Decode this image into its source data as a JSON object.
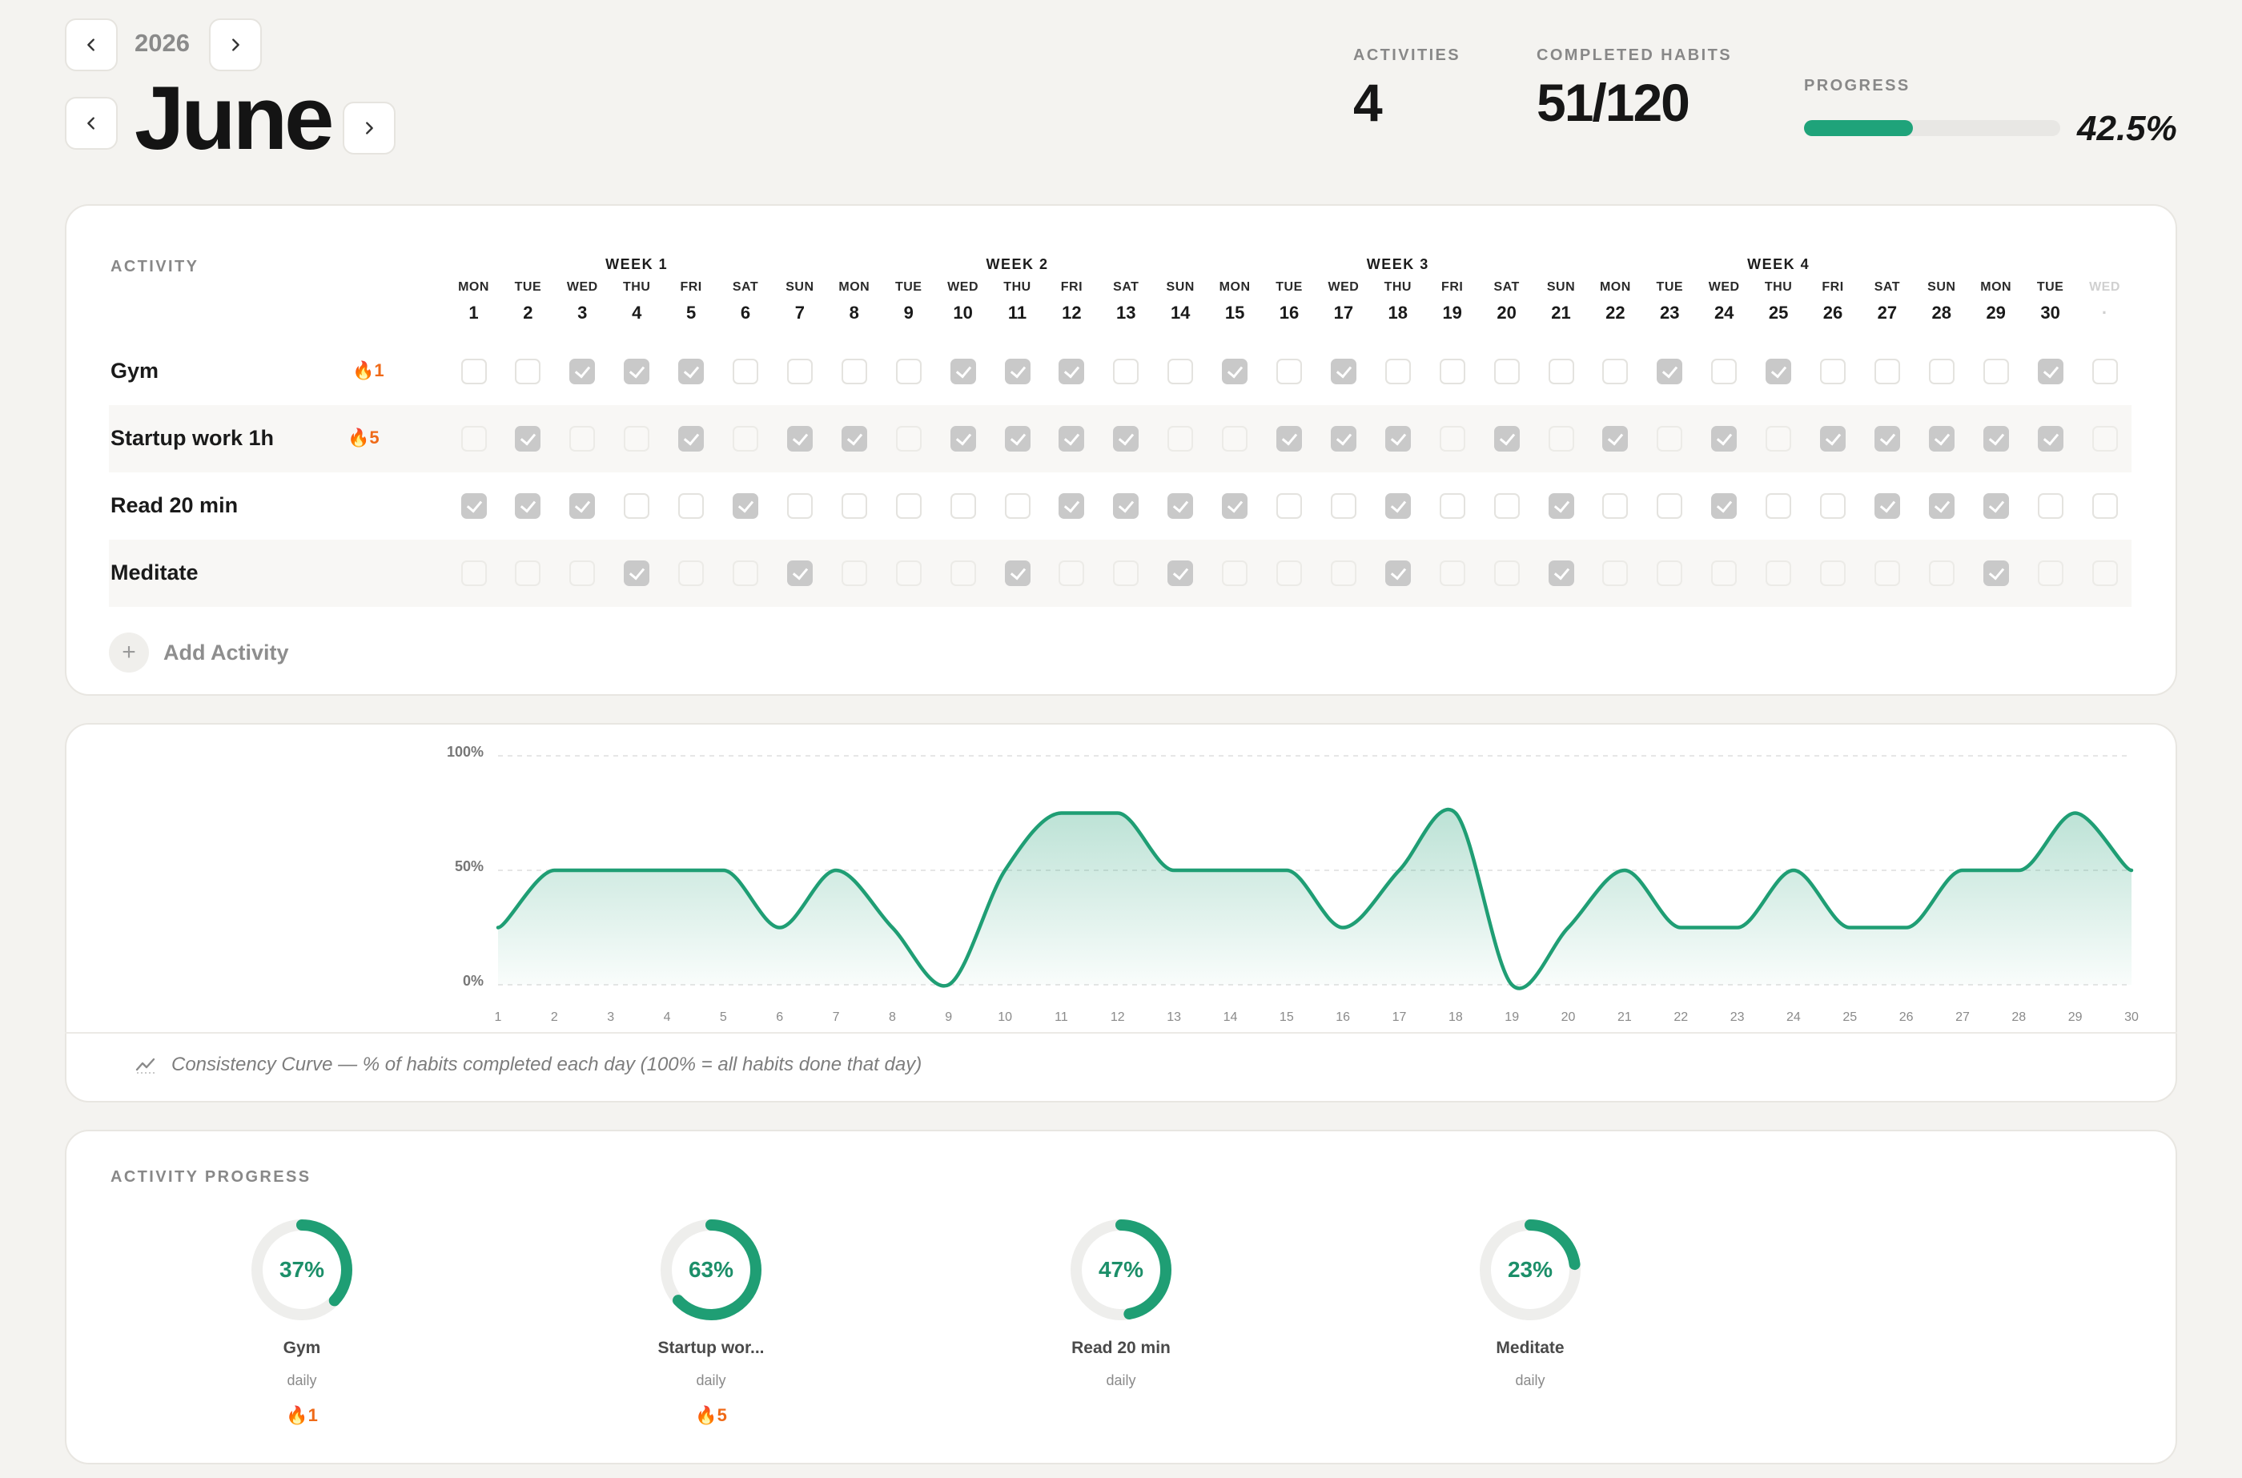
{
  "header": {
    "year": "2026",
    "month": "June",
    "stats": {
      "activities_label": "ACTIVITIES",
      "activities_value": "4",
      "completed_label": "COMPLETED HABITS",
      "completed_value": "51/120",
      "progress_label": "PROGRESS",
      "progress_value": "42.5%",
      "progress_fraction": 0.425
    }
  },
  "tracker": {
    "section_label": "ACTIVITY",
    "weeks": [
      "WEEK 1",
      "WEEK 2",
      "WEEK 3",
      "WEEK 4"
    ],
    "days": [
      {
        "name": "MON",
        "date": "1"
      },
      {
        "name": "TUE",
        "date": "2"
      },
      {
        "name": "WED",
        "date": "3"
      },
      {
        "name": "THU",
        "date": "4"
      },
      {
        "name": "FRI",
        "date": "5"
      },
      {
        "name": "SAT",
        "date": "6"
      },
      {
        "name": "SUN",
        "date": "7"
      },
      {
        "name": "MON",
        "date": "8"
      },
      {
        "name": "TUE",
        "date": "9"
      },
      {
        "name": "WED",
        "date": "10"
      },
      {
        "name": "THU",
        "date": "11"
      },
      {
        "name": "FRI",
        "date": "12"
      },
      {
        "name": "SAT",
        "date": "13"
      },
      {
        "name": "SUN",
        "date": "14"
      },
      {
        "name": "MON",
        "date": "15"
      },
      {
        "name": "TUE",
        "date": "16"
      },
      {
        "name": "WED",
        "date": "17"
      },
      {
        "name": "THU",
        "date": "18"
      },
      {
        "name": "FRI",
        "date": "19"
      },
      {
        "name": "SAT",
        "date": "20"
      },
      {
        "name": "SUN",
        "date": "21"
      },
      {
        "name": "MON",
        "date": "22"
      },
      {
        "name": "TUE",
        "date": "23"
      },
      {
        "name": "WED",
        "date": "24"
      },
      {
        "name": "THU",
        "date": "25"
      },
      {
        "name": "FRI",
        "date": "26"
      },
      {
        "name": "SAT",
        "date": "27"
      },
      {
        "name": "SUN",
        "date": "28"
      },
      {
        "name": "MON",
        "date": "29"
      },
      {
        "name": "TUE",
        "date": "30"
      },
      {
        "name": "WED",
        "date": "·",
        "faded": true
      }
    ],
    "habits": [
      {
        "name": "Gym",
        "streak": "🔥1",
        "checks": [
          0,
          0,
          1,
          1,
          1,
          0,
          0,
          0,
          0,
          1,
          1,
          1,
          0,
          0,
          1,
          0,
          1,
          0,
          0,
          0,
          0,
          0,
          1,
          0,
          1,
          0,
          0,
          0,
          0,
          1,
          0
        ]
      },
      {
        "name": "Startup work 1h",
        "streak": "🔥5",
        "checks": [
          0,
          1,
          0,
          0,
          1,
          0,
          1,
          1,
          0,
          1,
          1,
          1,
          1,
          0,
          0,
          1,
          1,
          1,
          0,
          1,
          0,
          1,
          0,
          1,
          0,
          1,
          1,
          1,
          1,
          1,
          0
        ]
      },
      {
        "name": "Read 20 min",
        "streak": "",
        "checks": [
          1,
          1,
          1,
          0,
          0,
          1,
          0,
          0,
          0,
          0,
          0,
          1,
          1,
          1,
          1,
          0,
          0,
          1,
          0,
          0,
          1,
          0,
          0,
          1,
          0,
          0,
          1,
          1,
          1,
          0,
          0
        ]
      },
      {
        "name": "Meditate",
        "streak": "",
        "checks": [
          0,
          0,
          0,
          1,
          0,
          0,
          1,
          0,
          0,
          0,
          1,
          0,
          0,
          1,
          0,
          0,
          0,
          1,
          0,
          0,
          1,
          0,
          0,
          0,
          0,
          0,
          0,
          0,
          1,
          0,
          0
        ]
      }
    ],
    "add_activity_label": "Add Activity"
  },
  "chart_data": {
    "type": "area",
    "title": "",
    "y_ticks": [
      "100%",
      "50%",
      "0%"
    ],
    "ylim": [
      0,
      100
    ],
    "x": [
      1,
      2,
      3,
      4,
      5,
      6,
      7,
      8,
      9,
      10,
      11,
      12,
      13,
      14,
      15,
      16,
      17,
      18,
      19,
      20,
      21,
      22,
      23,
      24,
      25,
      26,
      27,
      28,
      29,
      30
    ],
    "x_tick_labels": [
      "1",
      "2",
      "3",
      "4",
      "5",
      "6",
      "7",
      "8",
      "9",
      "10",
      "11",
      "12",
      "13",
      "14",
      "15",
      "16",
      "17",
      "18",
      "19",
      "20",
      "21",
      "22",
      "23",
      "24",
      "25",
      "26",
      "27",
      "28",
      "29",
      "30"
    ],
    "values": [
      25,
      50,
      50,
      50,
      50,
      25,
      50,
      25,
      0,
      50,
      75,
      75,
      50,
      50,
      50,
      25,
      50,
      75,
      0,
      25,
      50,
      25,
      25,
      50,
      25,
      25,
      50,
      50,
      75,
      50
    ],
    "line_color": "#1f9e74",
    "caption": "Consistency Curve — % of habits completed each day (100% = all habits done that day)"
  },
  "activity_progress": {
    "section_label": "ACTIVITY PROGRESS",
    "items": [
      {
        "name": "Gym",
        "pct_label": "37%",
        "pct": 0.37,
        "freq": "daily",
        "streak": "🔥1"
      },
      {
        "name": "Startup wor...",
        "pct_label": "63%",
        "pct": 0.63,
        "freq": "daily",
        "streak": "🔥5"
      },
      {
        "name": "Read 20 min",
        "pct_label": "47%",
        "pct": 0.47,
        "freq": "daily",
        "streak": ""
      },
      {
        "name": "Meditate",
        "pct_label": "23%",
        "pct": 0.23,
        "freq": "daily",
        "streak": ""
      }
    ],
    "accent": "#1f9e74"
  }
}
